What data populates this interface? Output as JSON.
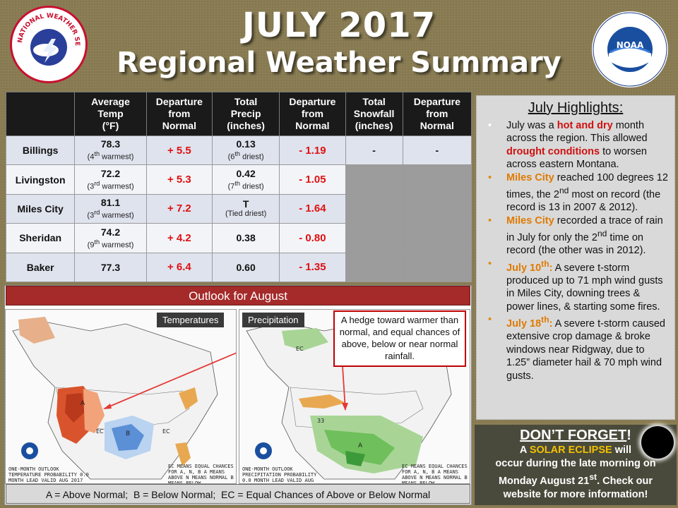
{
  "header": {
    "title": "JULY 2017",
    "subtitle": "Regional Weather Summary",
    "nws_logo_text": "NATIONAL WEATHER SERVICE",
    "noaa_logo_text": "NOAA"
  },
  "table": {
    "headers": [
      "",
      "Average Temp (°F)",
      "Departure from Normal",
      "Total Precip (inches)",
      "Departure from Normal",
      "Total Snowfall (inches)",
      "Departure from Normal"
    ],
    "rows": [
      {
        "city": "Billings",
        "temp": "78.3",
        "temp_note": "(4th warmest)",
        "temp_dep": "+ 5.5",
        "precip": "0.13",
        "precip_note": "(6th driest)",
        "precip_dep": "- 1.19",
        "snow": "-",
        "snow_dep": "-"
      },
      {
        "city": "Livingston",
        "temp": "72.2",
        "temp_note": "(3rd warmest)",
        "temp_dep": "+ 5.3",
        "precip": "0.42",
        "precip_note": "(7th driest)",
        "precip_dep": "- 1.05",
        "snow": "",
        "snow_dep": ""
      },
      {
        "city": "Miles City",
        "temp": "81.1",
        "temp_note": "(3rd warmest)",
        "temp_dep": "+ 7.2",
        "precip": "T",
        "precip_note": "(Tied driest)",
        "precip_dep": "- 1.64",
        "snow": "",
        "snow_dep": ""
      },
      {
        "city": "Sheridan",
        "temp": "74.2",
        "temp_note": "(9th warmest)",
        "temp_dep": "+ 4.2",
        "precip": "0.38",
        "precip_note": "",
        "precip_dep": "- 0.80",
        "snow": "",
        "snow_dep": ""
      },
      {
        "city": "Baker",
        "temp": "77.3",
        "temp_note": "",
        "temp_dep": "+ 6.4",
        "precip": "0.60",
        "precip_note": "",
        "precip_dep": "- 1.35",
        "snow": "",
        "snow_dep": ""
      }
    ]
  },
  "highlights": {
    "title": "July Highlights",
    "title_colon": ":",
    "b1": {
      "t1": "July was a ",
      "red": "hot and dry",
      "t2": " month across the region. This allowed ",
      "red2": "drought conditions",
      "t3": " to worsen across eastern Montana."
    },
    "b2": {
      "orange": "Miles City",
      "t1": " reached 100 degrees 12 times, the 2nd most on record (the record is 13 in 2007 & 2012)."
    },
    "b3": {
      "orange": "Miles City",
      "t1": " recorded a trace of rain in July for only the 2nd time on record (the other was in 2012)."
    },
    "b4": {
      "orange": "July 10th:",
      "t1": " A severe t-storm produced up to 71 mph wind gusts in Miles City, downing trees & power lines, & starting some fires."
    },
    "b5": {
      "orange": "July 18th:",
      "t1": " A severe t-storm caused extensive crop damage & broke windows near Ridgway, due to 1.25” diameter hail & 70 mph wind gusts."
    }
  },
  "eclipse": {
    "title": "DON’T FORGET",
    "excl": "!",
    "l1a": "A ",
    "gold": "SOLAR ECLIPSE",
    "l1b": " will",
    "l2": "occur during the late morning on",
    "l3": "Monday August 21st. Check our",
    "l4": "website for more information!"
  },
  "outlook": {
    "title": "Outlook for August",
    "temp_label": "Temperatures",
    "precip_label": "Precipitation",
    "callout": "A hedge toward warmer than normal, and equal chances of above, below or near normal rainfall.",
    "legend": "A = Above Normal;  B = Below Normal;  EC = Equal Chances of Above or Below Normal",
    "temp_caption": "ONE-MONTH OUTLOOK TEMPERATURE PROBABILITY 0.0 MONTH LEAD VALID AUG 2017",
    "temp_caption_right": "EC MEANS EQUAL CHANCES FOR A, N, B A MEANS ABOVE N MEANS NORMAL B MEANS BELOW",
    "precip_caption": "ONE-MONTH OUTLOOK PRECIPITATION PROBABILITY 0.0 MONTH LEAD VALID AUG 2017",
    "precip_caption_right": "EC MEANS EQUAL CHANCES FOR A, N, B A MEANS ABOVE N MEANS NORMAL B MEANS BELOW"
  },
  "colors": {
    "background": "#8b7e55",
    "warm": "#d9542c",
    "cool": "#5b8fd6",
    "wet": "#6fbf5c",
    "dry": "#e8a851",
    "header_red": "#a52a2a"
  }
}
